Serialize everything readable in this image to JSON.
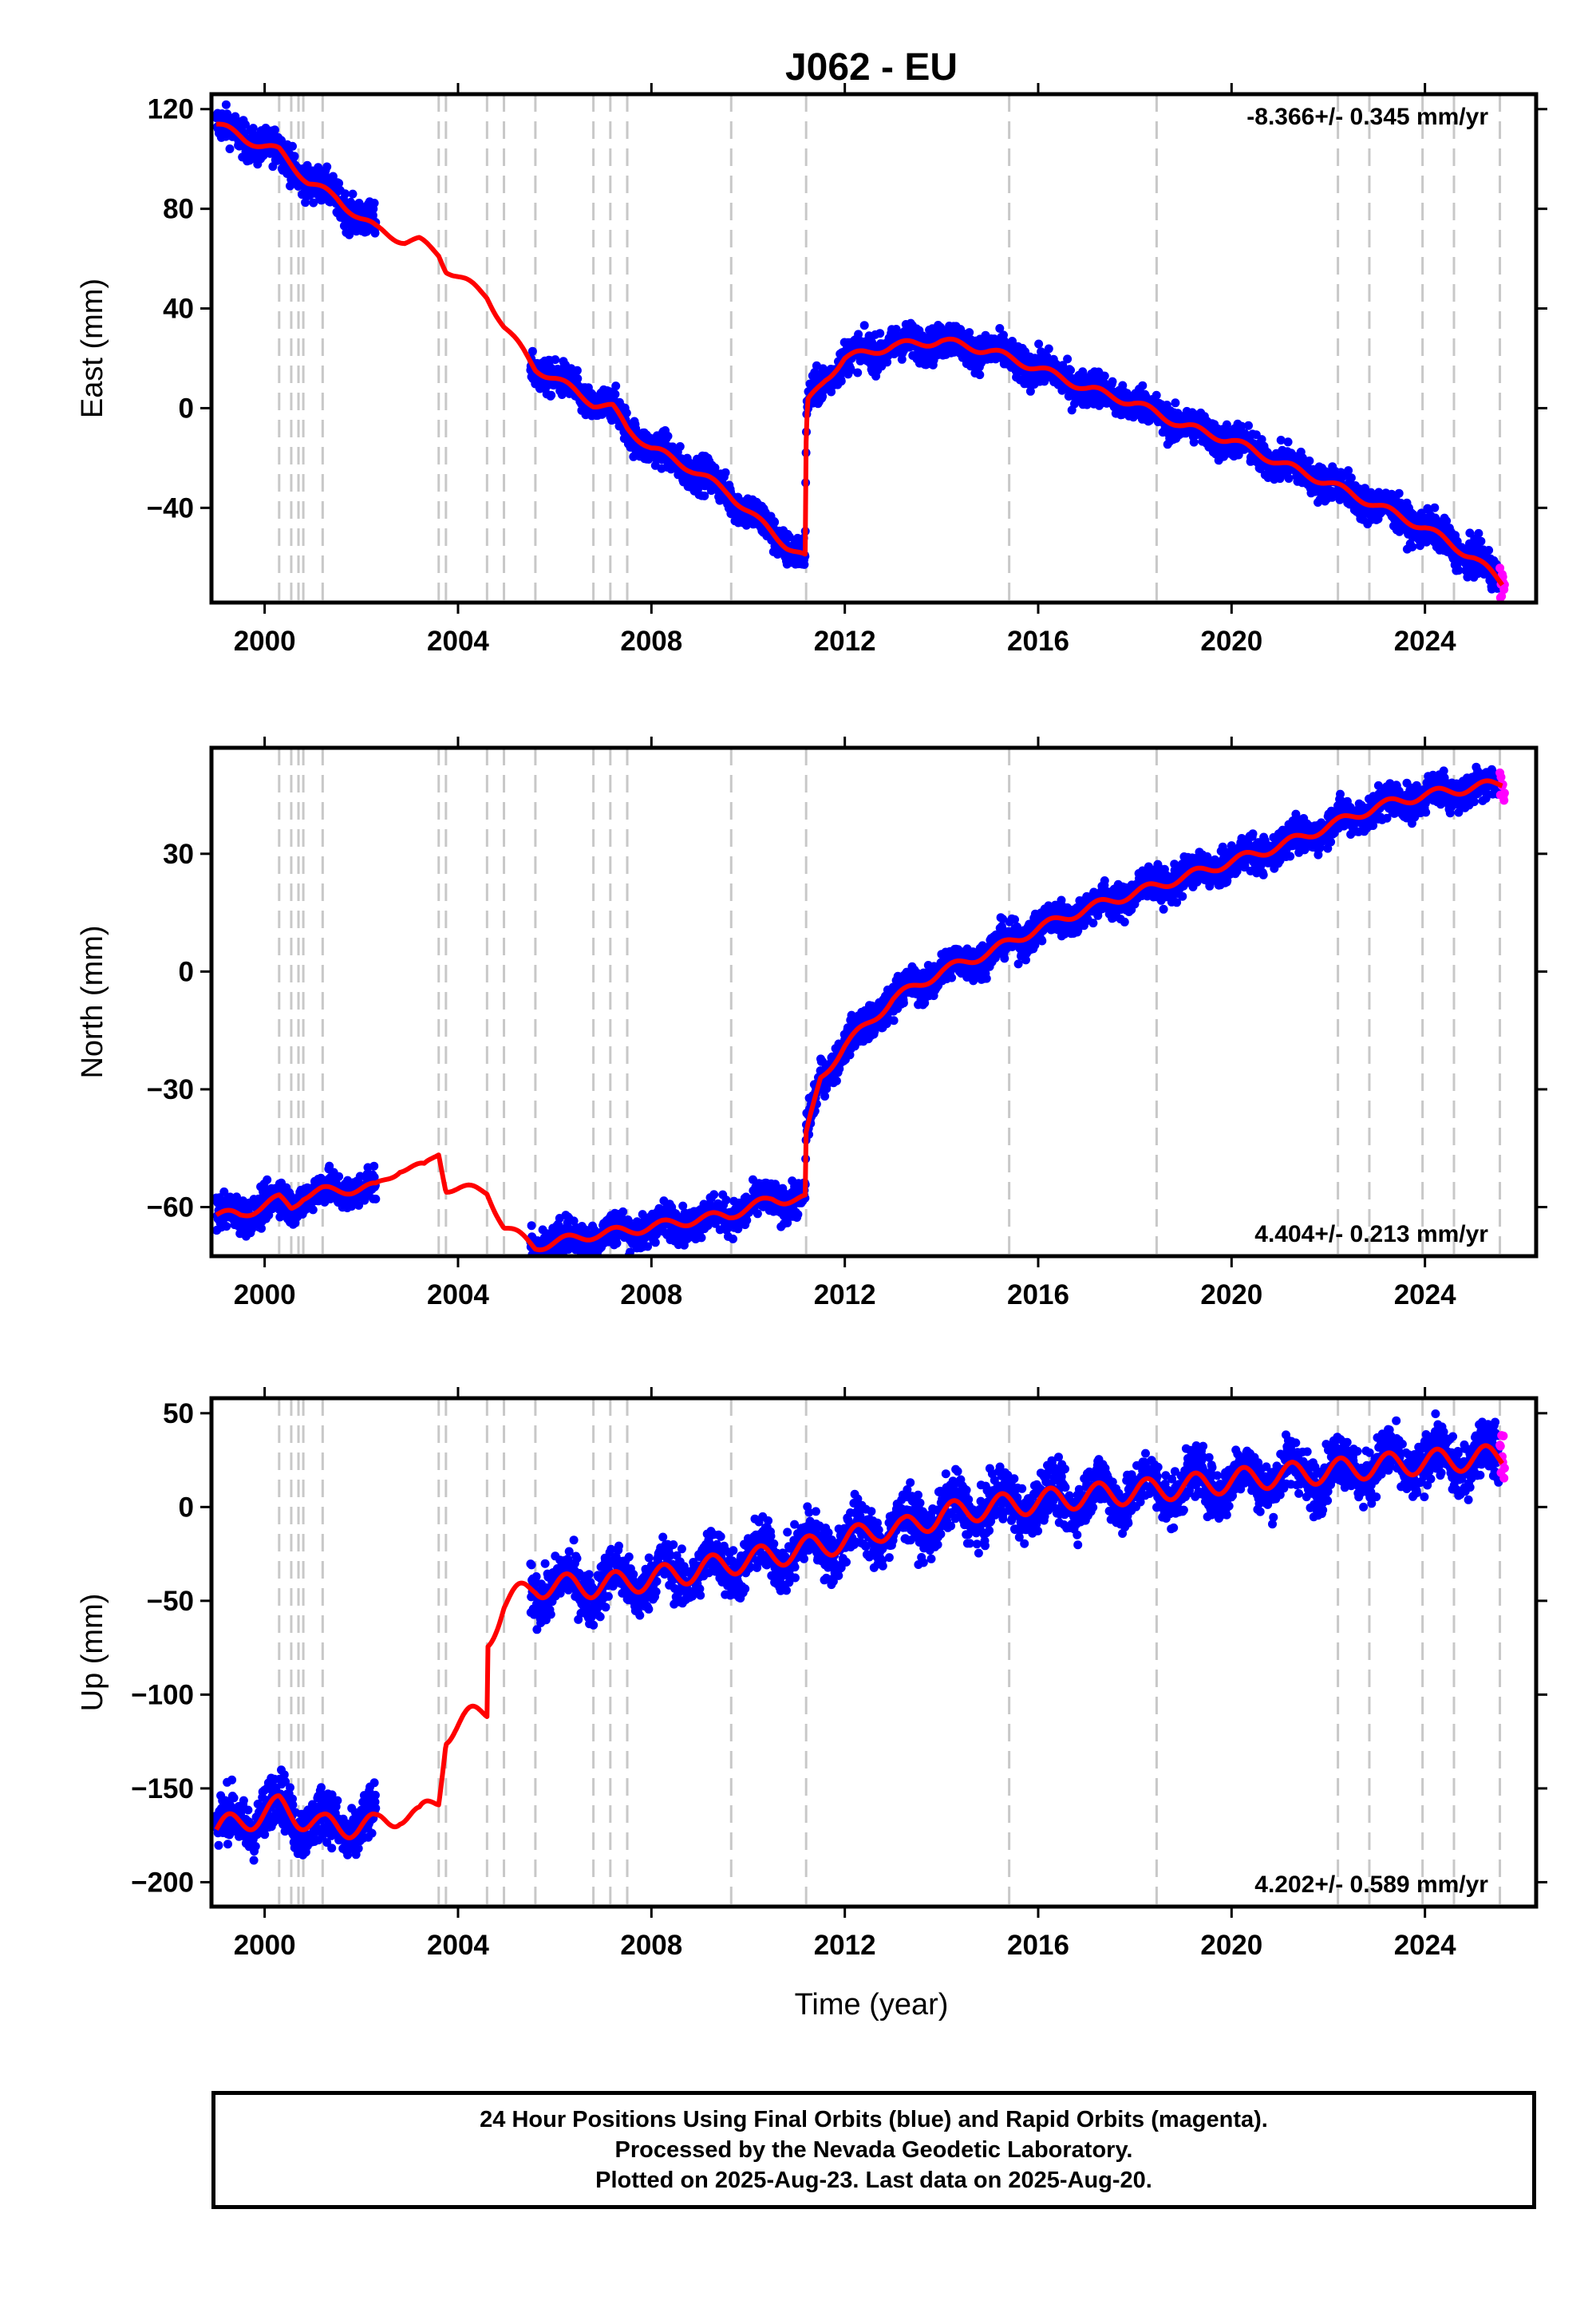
{
  "title": "J062 - EU",
  "colors": {
    "final": "#0000ff",
    "rapid": "#ff00ff",
    "model": "#ff0000",
    "event_lines": "#c8c8c8",
    "frame": "#000000"
  },
  "chart_data": {
    "type": "scatter",
    "title": "J062 - EU",
    "xlabel": "Time (year)",
    "xlim": [
      1998.9,
      2026.3
    ],
    "xticks": [
      2000,
      2004,
      2008,
      2012,
      2016,
      2020,
      2024
    ],
    "event_lines": [
      2000.3,
      2000.55,
      2000.7,
      2000.8,
      2001.2,
      2003.6,
      2003.75,
      2004.6,
      2004.95,
      2005.6,
      2006.8,
      2007.15,
      2007.5,
      2009.65,
      2011.2,
      2015.4,
      2018.45,
      2022.2,
      2022.85,
      2023.95,
      2024.6,
      2025.55
    ],
    "legend": {
      "final": "24 Hour Positions Using Final Orbits (blue)",
      "rapid": "Rapid Orbits (magenta)"
    },
    "panels": [
      {
        "name": "East",
        "ylabel": "East (mm)",
        "ylim": [
          -78,
          126
        ],
        "yticks": [
          120,
          80,
          40,
          0,
          -40
        ],
        "rate": "-8.366+/- 0.345 mm/yr",
        "rate_position": "top-right",
        "model_knots": [
          [
            1999.0,
            114
          ],
          [
            1999.6,
            108
          ],
          [
            2000.3,
            103
          ],
          [
            2000.9,
            91
          ],
          [
            2001.5,
            84
          ],
          [
            2002.0,
            76
          ],
          [
            2002.3,
            72
          ],
          [
            2002.9,
            67
          ],
          [
            2003.2,
            67
          ],
          [
            2003.6,
            62
          ],
          [
            2003.75,
            56
          ],
          [
            2004.6,
            45
          ],
          [
            2004.95,
            33
          ],
          [
            2005.6,
            16
          ],
          [
            2006.0,
            12
          ],
          [
            2006.8,
            2
          ],
          [
            2007.2,
            0
          ],
          [
            2007.5,
            -8
          ],
          [
            2008.0,
            -16
          ],
          [
            2008.8,
            -24
          ],
          [
            2009.6,
            -34
          ],
          [
            2010.2,
            -45
          ],
          [
            2010.8,
            -55
          ],
          [
            2011.18,
            -60
          ],
          [
            2011.2,
            -15
          ],
          [
            2011.23,
            2
          ],
          [
            2011.6,
            12
          ],
          [
            2012.0,
            20
          ],
          [
            2013.0,
            25
          ],
          [
            2014.0,
            27
          ],
          [
            2015.0,
            23
          ],
          [
            2016.0,
            16
          ],
          [
            2017.0,
            8
          ],
          [
            2018.0,
            2
          ],
          [
            2019.0,
            -7
          ],
          [
            2020.0,
            -13
          ],
          [
            2021.0,
            -22
          ],
          [
            2022.0,
            -30
          ],
          [
            2023.0,
            -39
          ],
          [
            2024.0,
            -48
          ],
          [
            2025.0,
            -60
          ],
          [
            2025.6,
            -70
          ]
        ],
        "final_segments": [
          [
            1999.0,
            2002.3
          ],
          [
            2005.5,
            2011.25
          ],
          [
            2011.25,
            2025.55
          ]
        ],
        "rapid_range": [
          2025.55,
          2025.65
        ],
        "scatter": 3.5,
        "seasonal": 2
      },
      {
        "name": "North",
        "ylabel": "North (mm)",
        "ylim": [
          -72.5,
          57
        ],
        "yticks": [
          30,
          0,
          -30,
          -60
        ],
        "rate": "4.404+/- 0.213 mm/yr",
        "rate_position": "bottom-right",
        "model_knots": [
          [
            1999.0,
            -62
          ],
          [
            1999.5,
            -62
          ],
          [
            2000.3,
            -58
          ],
          [
            2000.55,
            -60
          ],
          [
            2000.8,
            -57
          ],
          [
            2001.2,
            -56
          ],
          [
            2002.3,
            -55
          ],
          [
            2002.8,
            -50
          ],
          [
            2003.3,
            -50
          ],
          [
            2003.6,
            -46
          ],
          [
            2003.75,
            -55
          ],
          [
            2004.6,
            -56
          ],
          [
            2004.95,
            -65
          ],
          [
            2005.6,
            -70
          ],
          [
            2006.8,
            -67
          ],
          [
            2007.5,
            -66
          ],
          [
            2008.5,
            -64
          ],
          [
            2009.6,
            -62
          ],
          [
            2010.5,
            -58
          ],
          [
            2011.18,
            -58
          ],
          [
            2011.2,
            -42
          ],
          [
            2011.5,
            -27
          ],
          [
            2012.0,
            -19
          ],
          [
            2013.0,
            -7
          ],
          [
            2014.0,
            0
          ],
          [
            2015.0,
            5
          ],
          [
            2016.0,
            11
          ],
          [
            2017.0,
            16
          ],
          [
            2018.0,
            20
          ],
          [
            2019.0,
            24
          ],
          [
            2020.0,
            28
          ],
          [
            2021.0,
            32
          ],
          [
            2022.0,
            37
          ],
          [
            2023.0,
            42
          ],
          [
            2024.0,
            45
          ],
          [
            2025.6,
            48
          ]
        ],
        "final_segments": [
          [
            1999.0,
            2002.3
          ],
          [
            2005.5,
            2011.25
          ],
          [
            2011.25,
            2025.55
          ]
        ],
        "rapid_range": [
          2025.55,
          2025.65
        ],
        "scatter": 2.2,
        "seasonal": 1.5
      },
      {
        "name": "Up",
        "ylabel": "Up (mm)",
        "ylim": [
          -213,
          58
        ],
        "yticks": [
          50,
          0,
          -50,
          -100,
          -150,
          -200
        ],
        "rate": "4.202+/- 0.589 mm/yr",
        "rate_position": "bottom-right",
        "model_knots": [
          [
            1999.0,
            -172
          ],
          [
            1999.5,
            -168
          ],
          [
            2000.3,
            -160
          ],
          [
            2000.7,
            -165
          ],
          [
            2001.2,
            -170
          ],
          [
            2002.3,
            -170
          ],
          [
            2002.8,
            -163
          ],
          [
            2003.2,
            -166
          ],
          [
            2003.6,
            -155
          ],
          [
            2003.75,
            -120
          ],
          [
            2004.6,
            -108
          ],
          [
            2004.62,
            -70
          ],
          [
            2004.95,
            -52
          ],
          [
            2005.6,
            -42
          ],
          [
            2006.8,
            -42
          ],
          [
            2007.5,
            -40
          ],
          [
            2008.5,
            -36
          ],
          [
            2009.6,
            -30
          ],
          [
            2010.5,
            -26
          ],
          [
            2011.2,
            -22
          ],
          [
            2012.0,
            -18
          ],
          [
            2012.7,
            -12
          ],
          [
            2013.2,
            -12
          ],
          [
            2014.0,
            -4
          ],
          [
            2015.0,
            0
          ],
          [
            2016.0,
            3
          ],
          [
            2017.0,
            6
          ],
          [
            2018.0,
            8
          ],
          [
            2019.0,
            11
          ],
          [
            2020.0,
            14
          ],
          [
            2021.0,
            17
          ],
          [
            2022.0,
            19
          ],
          [
            2023.0,
            22
          ],
          [
            2024.0,
            24
          ],
          [
            2025.6,
            27
          ]
        ],
        "final_segments": [
          [
            1999.0,
            2002.3
          ],
          [
            2005.5,
            2012.8
          ],
          [
            2012.9,
            2025.55
          ]
        ],
        "rapid_range": [
          2025.55,
          2025.65
        ],
        "scatter": 7,
        "seasonal": 8
      }
    ]
  },
  "footer": {
    "line1": "24 Hour Positions Using Final Orbits (blue) and Rapid Orbits (magenta).",
    "line2": "Processed by the Nevada Geodetic Laboratory.",
    "line3": "Plotted on 2025-Aug-23. Last data on 2025-Aug-20."
  }
}
